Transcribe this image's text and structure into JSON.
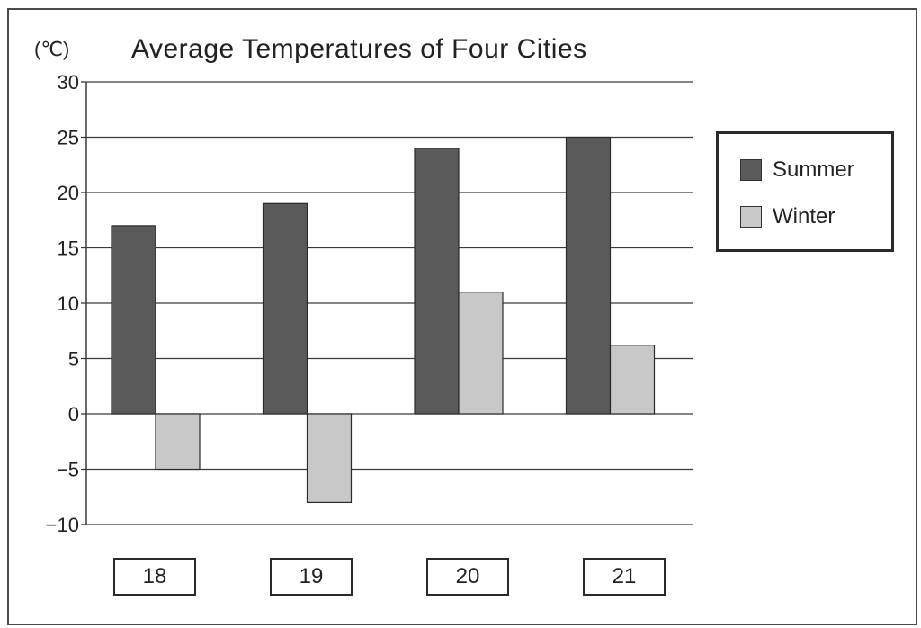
{
  "chart_data": {
    "type": "bar",
    "title": "Average Temperatures of Four Cities",
    "unit_label": "(℃)",
    "categories": [
      "18",
      "19",
      "20",
      "21"
    ],
    "series": [
      {
        "name": "Summer",
        "values": [
          17,
          19,
          24,
          25
        ],
        "color": "#5a5a5a"
      },
      {
        "name": "Winter",
        "values": [
          -5,
          -8,
          11,
          6.2
        ],
        "color": "#c8c8c8"
      }
    ],
    "ylim": [
      -10,
      30
    ],
    "yticks": [
      30,
      25,
      20,
      15,
      10,
      5,
      0,
      -5,
      -10
    ],
    "ytick_labels": [
      "30",
      "25",
      "20",
      "15",
      "10",
      "5",
      "0",
      "−5",
      "−10"
    ],
    "grid": true,
    "legend_position": "right"
  }
}
